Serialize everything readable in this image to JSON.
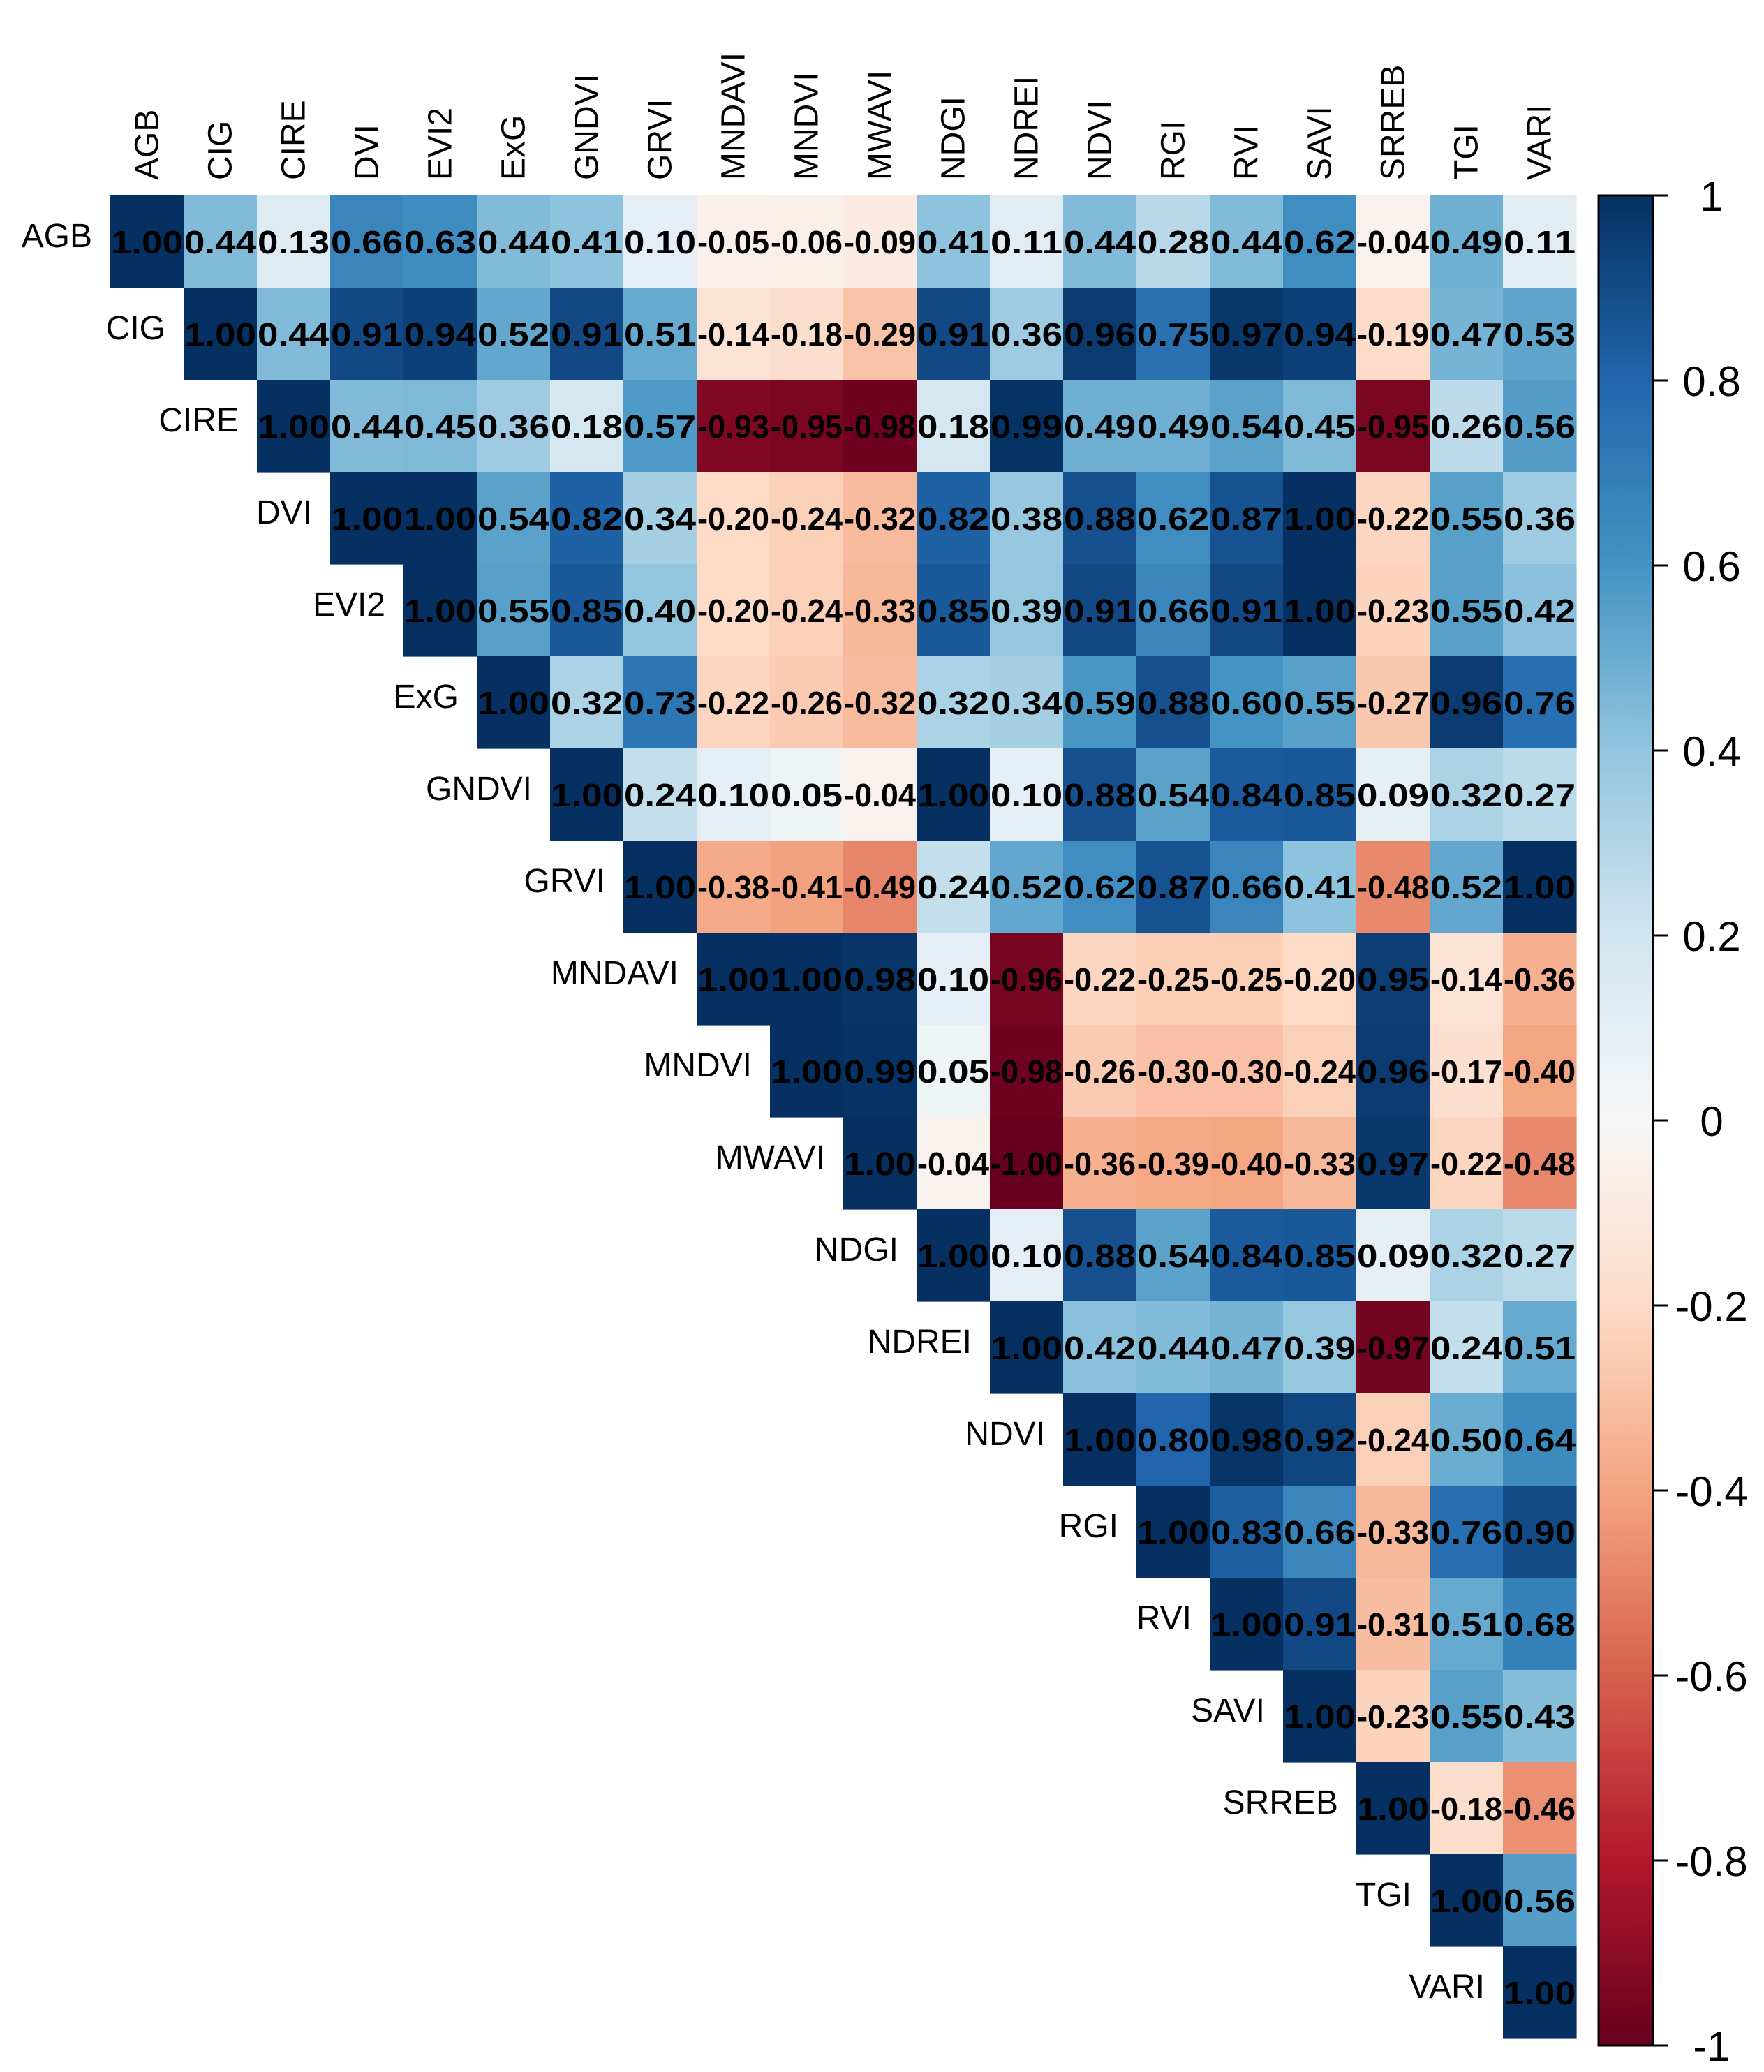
{
  "chart_data": {
    "type": "heatmap",
    "layout": "upper-triangle",
    "variables": [
      "AGB",
      "CIG",
      "CIRE",
      "DVI",
      "EVI2",
      "ExG",
      "GNDVI",
      "GRVI",
      "MNDAVI",
      "MNDVI",
      "MWAVI",
      "NDGI",
      "NDREI",
      "NDVI",
      "RGI",
      "RVI",
      "SAVI",
      "SRREB",
      "TGI",
      "VARI"
    ],
    "rows": [
      [
        "1.00",
        "0.44",
        "0.13",
        "0.66",
        "0.63",
        "0.44",
        "0.41",
        "0.10",
        "-0.05",
        "-0.06",
        "-0.09",
        "0.41",
        "0.11",
        "0.44",
        "0.28",
        "0.44",
        "0.62",
        "-0.04",
        "0.49",
        "0.11"
      ],
      [
        "1.00",
        "0.44",
        "0.91",
        "0.94",
        "0.52",
        "0.91",
        "0.51",
        "-0.14",
        "-0.18",
        "-0.29",
        "0.91",
        "0.36",
        "0.96",
        "0.75",
        "0.97",
        "0.94",
        "-0.19",
        "0.47",
        "0.53"
      ],
      [
        "1.00",
        "0.44",
        "0.45",
        "0.36",
        "0.18",
        "0.57",
        "-0.93",
        "-0.95",
        "-0.98",
        "0.18",
        "0.99",
        "0.49",
        "0.49",
        "0.54",
        "0.45",
        "-0.95",
        "0.26",
        "0.56"
      ],
      [
        "1.00",
        "1.00",
        "0.54",
        "0.82",
        "0.34",
        "-0.20",
        "-0.24",
        "-0.32",
        "0.82",
        "0.38",
        "0.88",
        "0.62",
        "0.87",
        "1.00",
        "-0.22",
        "0.55",
        "0.36"
      ],
      [
        "1.00",
        "0.55",
        "0.85",
        "0.40",
        "-0.20",
        "-0.24",
        "-0.33",
        "0.85",
        "0.39",
        "0.91",
        "0.66",
        "0.91",
        "1.00",
        "-0.23",
        "0.55",
        "0.42"
      ],
      [
        "1.00",
        "0.32",
        "0.73",
        "-0.22",
        "-0.26",
        "-0.32",
        "0.32",
        "0.34",
        "0.59",
        "0.88",
        "0.60",
        "0.55",
        "-0.27",
        "0.96",
        "0.76"
      ],
      [
        "1.00",
        "0.24",
        "0.10",
        "0.05",
        "-0.04",
        "1.00",
        "0.10",
        "0.88",
        "0.54",
        "0.84",
        "0.85",
        "0.09",
        "0.32",
        "0.27"
      ],
      [
        "1.00",
        "-0.38",
        "-0.41",
        "-0.49",
        "0.24",
        "0.52",
        "0.62",
        "0.87",
        "0.66",
        "0.41",
        "-0.48",
        "0.52",
        "1.00"
      ],
      [
        "1.00",
        "1.00",
        "0.98",
        "0.10",
        "-0.96",
        "-0.22",
        "-0.25",
        "-0.25",
        "-0.20",
        "0.95",
        "-0.14",
        "-0.36"
      ],
      [
        "1.00",
        "0.99",
        "0.05",
        "-0.98",
        "-0.26",
        "-0.30",
        "-0.30",
        "-0.24",
        "0.96",
        "-0.17",
        "-0.40"
      ],
      [
        "1.00",
        "-0.04",
        "-1.00",
        "-0.36",
        "-0.39",
        "-0.40",
        "-0.33",
        "0.97",
        "-0.22",
        "-0.48"
      ],
      [
        "1.00",
        "0.10",
        "0.88",
        "0.54",
        "0.84",
        "0.85",
        "0.09",
        "0.32",
        "0.27"
      ],
      [
        "1.00",
        "0.42",
        "0.44",
        "0.47",
        "0.39",
        "-0.97",
        "0.24",
        "0.51"
      ],
      [
        "1.00",
        "0.80",
        "0.98",
        "0.92",
        "-0.24",
        "0.50",
        "0.64"
      ],
      [
        "1.00",
        "0.83",
        "0.66",
        "-0.33",
        "0.76",
        "0.90"
      ],
      [
        "1.00",
        "0.91",
        "-0.31",
        "0.51",
        "0.68"
      ],
      [
        "1.00",
        "-0.23",
        "0.55",
        "0.43"
      ],
      [
        "1.00",
        "-0.18",
        "-0.46"
      ],
      [
        "1.00",
        "0.56"
      ],
      [
        "1.00"
      ]
    ],
    "colorbar": {
      "range": [
        -1,
        1
      ],
      "tick_labels": [
        "1",
        "0.8",
        "0.6",
        "0.4",
        "0.2",
        "0",
        "-0.2",
        "-0.4",
        "-0.6",
        "-0.8",
        "-1"
      ],
      "colors": [
        "#67001f",
        "#b2182b",
        "#d6604d",
        "#f4a582",
        "#fddbc7",
        "#f7f7f7",
        "#d1e5f0",
        "#92c5de",
        "#4393c3",
        "#2166ac",
        "#053061"
      ]
    },
    "title": "",
    "xlabel": "",
    "ylabel": ""
  }
}
